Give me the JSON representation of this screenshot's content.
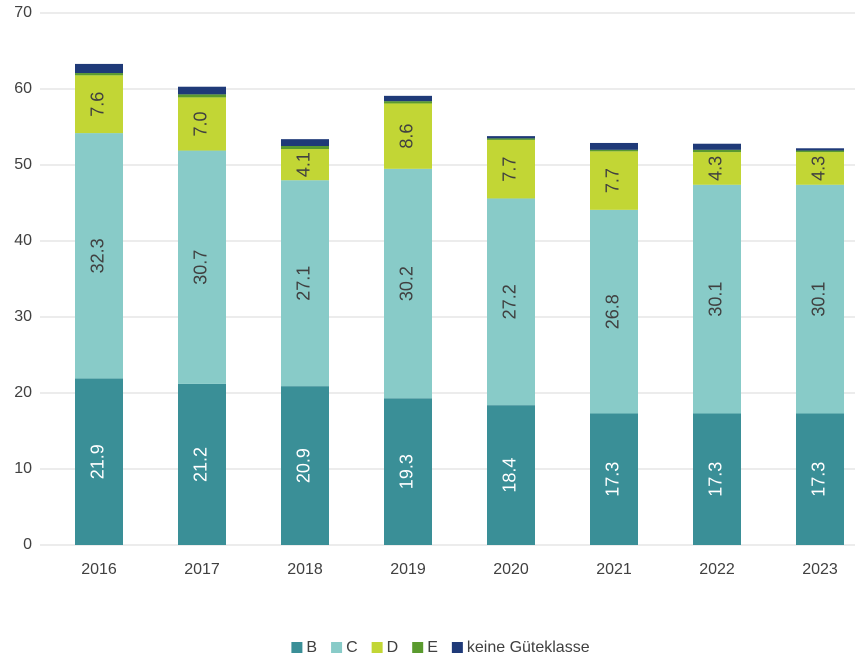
{
  "chart_data": {
    "type": "stacked_bar",
    "categories": [
      "2016",
      "2017",
      "2018",
      "2019",
      "2020",
      "2021",
      "2022",
      "2023"
    ],
    "series": [
      {
        "name": "B",
        "color": "#3a8f97",
        "values": [
          21.9,
          21.2,
          20.9,
          19.3,
          18.4,
          17.3,
          17.3,
          17.3
        ],
        "value_labels": [
          "21.9",
          "21.2",
          "20.9",
          "19.3",
          "18.4",
          "17.3",
          "17.3",
          "17.3"
        ]
      },
      {
        "name": "C",
        "color": "#88cbc8",
        "values": [
          32.3,
          30.7,
          27.1,
          30.2,
          27.2,
          26.8,
          30.1,
          30.1
        ],
        "value_labels": [
          "32.3",
          "30.7",
          "27.1",
          "30.2",
          "27.2",
          "26.8",
          "30.1",
          "30.1"
        ]
      },
      {
        "name": "D",
        "color": "#c2d635",
        "values": [
          7.6,
          7.0,
          4.1,
          8.6,
          7.7,
          7.7,
          4.3,
          4.3
        ],
        "value_labels": [
          "7.6",
          "7.0",
          "4.1",
          "8.6",
          "7.7",
          "7.7",
          "4.3",
          "4.3"
        ]
      },
      {
        "name": "E",
        "color": "#5a9a2e",
        "values": [
          0.3,
          0.4,
          0.4,
          0.3,
          0.2,
          0.2,
          0.3,
          0.2
        ]
      },
      {
        "name": "keine Güteklasse",
        "color": "#1f3a78",
        "values": [
          1.2,
          1.0,
          0.9,
          0.7,
          0.3,
          0.9,
          0.8,
          0.3
        ]
      }
    ],
    "ylim": [
      0,
      70
    ],
    "yticks": [
      0,
      10,
      20,
      30,
      40,
      50,
      60,
      70
    ],
    "grid": true,
    "legend": "bottom"
  }
}
